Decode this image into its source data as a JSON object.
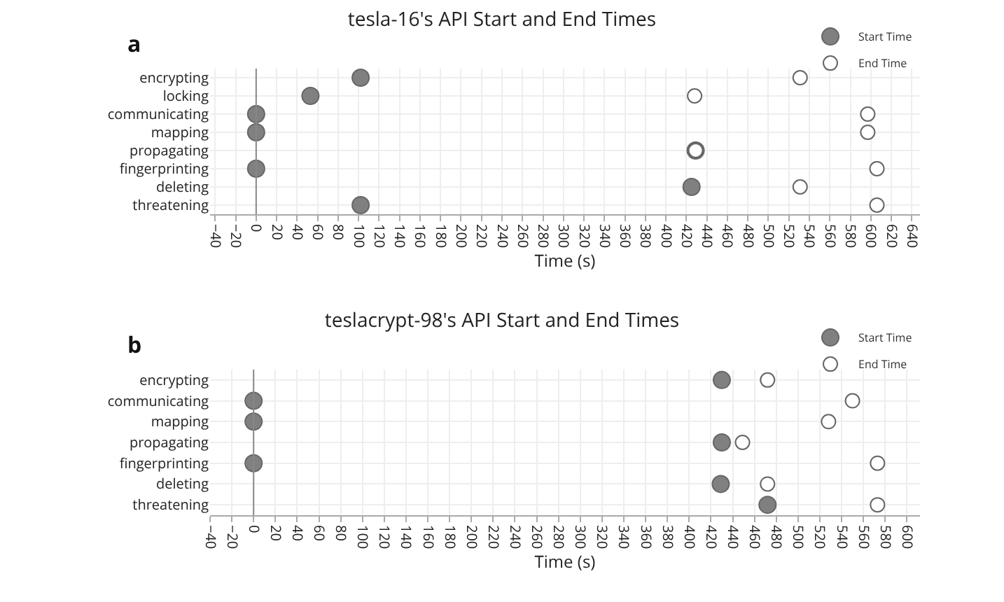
{
  "chart_data": [
    {
      "type": "scatter",
      "title": "tesla-16's API Start and End Times",
      "xlabel": "Time (s)",
      "annotations": [
        "a"
      ],
      "categories": [
        "encrypting",
        "locking",
        "communicating",
        "mapping",
        "propagating",
        "fingerprinting",
        "deleting",
        "threatening"
      ],
      "series": [
        {
          "name": "Start Time",
          "color": "#808080",
          "values": [
            102,
            53,
            0,
            0,
            429,
            0,
            425,
            102
          ]
        },
        {
          "name": "End Time",
          "color": "#ffffff",
          "values": [
            531,
            428,
            597,
            597,
            429,
            606,
            531,
            606
          ]
        }
      ],
      "orientation": "horizontal",
      "xlim": [
        -45,
        648
      ],
      "xticks": [
        -40,
        -20,
        0,
        20,
        40,
        60,
        80,
        100,
        120,
        140,
        160,
        180,
        200,
        220,
        240,
        260,
        280,
        300,
        320,
        340,
        360,
        380,
        400,
        420,
        440,
        460,
        480,
        500,
        520,
        540,
        560,
        580,
        600,
        620,
        640
      ],
      "ref_lines": [
        {
          "axis": "x",
          "value": 0
        }
      ],
      "grid": true,
      "legend": "top right",
      "marker": "circle"
    },
    {
      "type": "scatter",
      "title": "teslacrypt-98's API Start and End Times",
      "xlabel": "Time (s)",
      "annotations": [
        "b"
      ],
      "categories": [
        "encrypting",
        "communicating",
        "mapping",
        "propagating",
        "fingerprinting",
        "deleting",
        "threatening"
      ],
      "series": [
        {
          "name": "Start Time",
          "color": "#808080",
          "values": [
            430,
            0,
            0,
            430,
            0,
            429,
            472
          ]
        },
        {
          "name": "End Time",
          "color": "#ffffff",
          "values": [
            472,
            550,
            528,
            449,
            573,
            472,
            573
          ]
        }
      ],
      "orientation": "horizontal",
      "xlim": [
        -40,
        612
      ],
      "xticks": [
        -40,
        -20,
        0,
        20,
        40,
        60,
        80,
        100,
        120,
        140,
        160,
        180,
        200,
        220,
        240,
        260,
        280,
        300,
        320,
        340,
        360,
        380,
        400,
        420,
        440,
        460,
        480,
        500,
        520,
        540,
        560,
        580,
        600
      ],
      "ref_lines": [
        {
          "axis": "x",
          "value": 0
        }
      ],
      "grid": true,
      "legend": "top right",
      "marker": "circle"
    }
  ]
}
